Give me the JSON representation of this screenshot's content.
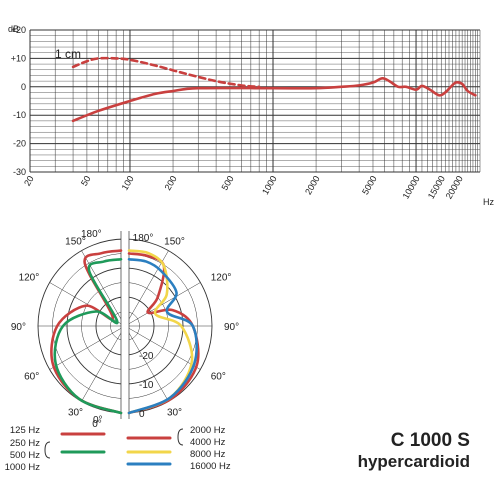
{
  "colors": {
    "low": "#c9403f",
    "mid": "#1f9a5a",
    "high": "#f2d64a",
    "vhigh": "#2b7fc0",
    "grid": "#333333"
  },
  "title": {
    "model": "C 1000 S",
    "pattern": "hypercardioid"
  },
  "chart_data": [
    {
      "type": "line",
      "subtype": "frequency-response",
      "xlabel": "Hz",
      "ylabel": "dB",
      "x_scale": "log",
      "xlim": [
        20,
        28000
      ],
      "ylim": [
        -30,
        20
      ],
      "grid": true,
      "x_ticks": [
        "20",
        "50",
        "100",
        "200",
        "500",
        "1000",
        "2000",
        "5000",
        "10000",
        "15000",
        "20000"
      ],
      "y_ticks": [
        "+20",
        "+10",
        "0",
        "-10",
        "-20",
        "-30"
      ],
      "annotations": [
        "1 cm"
      ],
      "series": [
        {
          "name": "1 cm",
          "style": "dashed",
          "points": [
            [
              40,
              7
            ],
            [
              50,
              9
            ],
            [
              60,
              10
            ],
            [
              80,
              10
            ],
            [
              100,
              9.5
            ],
            [
              150,
              7.5
            ],
            [
              250,
              4.5
            ],
            [
              400,
              2
            ],
            [
              600,
              0.5
            ],
            [
              800,
              0
            ]
          ]
        },
        {
          "style": "solid",
          "points": [
            [
              40,
              -12
            ],
            [
              60,
              -8.5
            ],
            [
              100,
              -5
            ],
            [
              150,
              -2.5
            ],
            [
              200,
              -1.5
            ],
            [
              300,
              -0.5
            ],
            [
              1000,
              -0.5
            ],
            [
              2000,
              -0.5
            ],
            [
              3000,
              0
            ],
            [
              4000,
              0.5
            ],
            [
              5000,
              1.5
            ],
            [
              5800,
              3
            ],
            [
              6500,
              2
            ],
            [
              7500,
              0
            ],
            [
              8500,
              0
            ],
            [
              10000,
              -1
            ],
            [
              11000,
              0.3
            ],
            [
              12500,
              -1
            ],
            [
              14500,
              -3
            ],
            [
              16000,
              -2
            ],
            [
              17500,
              0
            ],
            [
              19000,
              1.5
            ],
            [
              21000,
              1
            ],
            [
              23000,
              -1.5
            ],
            [
              26000,
              -3
            ]
          ]
        }
      ]
    },
    {
      "type": "polar",
      "subtype": "polar-pattern",
      "angle_labels": [
        "0°",
        "30°",
        "60°",
        "90°",
        "120°",
        "150°",
        "180°"
      ],
      "radial_labels": [
        "-20",
        "-10",
        "0"
      ],
      "radial_range_db": [
        -30,
        0
      ],
      "legend": {
        "left": {
          "labels": [
            "125 Hz",
            "250 Hz",
            "500 Hz",
            "1000 Hz"
          ],
          "groups": [
            {
              "name": "125 Hz",
              "color": "#c9403f"
            },
            {
              "name": "250–1000 Hz",
              "color": "#1f9a5a"
            }
          ]
        },
        "right": {
          "labels": [
            "2000 Hz",
            "4000 Hz",
            "8000 Hz",
            "16000 Hz"
          ],
          "groups": [
            {
              "name": "2000–4000 Hz",
              "color": "#c9403f"
            },
            {
              "name": "8000 Hz",
              "color": "#f2d64a"
            },
            {
              "name": "16000 Hz",
              "color": "#2b7fc0"
            }
          ]
        }
      },
      "series": [
        {
          "name": "125 Hz",
          "side": "left",
          "color": "#c9403f",
          "points": [
            [
              0,
              0
            ],
            [
              30,
              -1
            ],
            [
              60,
              -3
            ],
            [
              90,
              -8
            ],
            [
              120,
              -16
            ],
            [
              135,
              -26
            ],
            [
              150,
              -5
            ],
            [
              165,
              -4
            ],
            [
              180,
              -4
            ]
          ]
        },
        {
          "name": "250–1000 Hz",
          "side": "left",
          "color": "#1f9a5a",
          "points": [
            [
              0,
              0
            ],
            [
              30,
              -1
            ],
            [
              60,
              -4
            ],
            [
              90,
              -10
            ],
            [
              120,
              -20
            ],
            [
              140,
              -28
            ],
            [
              150,
              -8
            ],
            [
              165,
              -7
            ],
            [
              180,
              -7
            ]
          ]
        },
        {
          "name": "2000–4000 Hz",
          "side": "right",
          "color": "#c9403f",
          "points": [
            [
              0,
              0
            ],
            [
              30,
              -1
            ],
            [
              60,
              -3
            ],
            [
              90,
              -8
            ],
            [
              110,
              -14
            ],
            [
              125,
              -22
            ],
            [
              135,
              -16
            ],
            [
              150,
              -6
            ],
            [
              165,
              -5
            ],
            [
              180,
              -5
            ]
          ]
        },
        {
          "name": "8000 Hz",
          "side": "right",
          "color": "#f2d64a",
          "points": [
            [
              0,
              0
            ],
            [
              30,
              -1.5
            ],
            [
              60,
              -5
            ],
            [
              90,
              -12
            ],
            [
              115,
              -20
            ],
            [
              130,
              -13
            ],
            [
              150,
              -6
            ],
            [
              165,
              -4
            ],
            [
              180,
              -4
            ]
          ]
        },
        {
          "name": "16000 Hz",
          "side": "right",
          "color": "#2b7fc0",
          "points": [
            [
              0,
              0
            ],
            [
              30,
              -1.5
            ],
            [
              60,
              -4
            ],
            [
              90,
              -8
            ],
            [
              110,
              -16
            ],
            [
              125,
              -10
            ],
            [
              150,
              -8
            ],
            [
              165,
              -7
            ],
            [
              180,
              -7
            ]
          ]
        }
      ]
    }
  ]
}
